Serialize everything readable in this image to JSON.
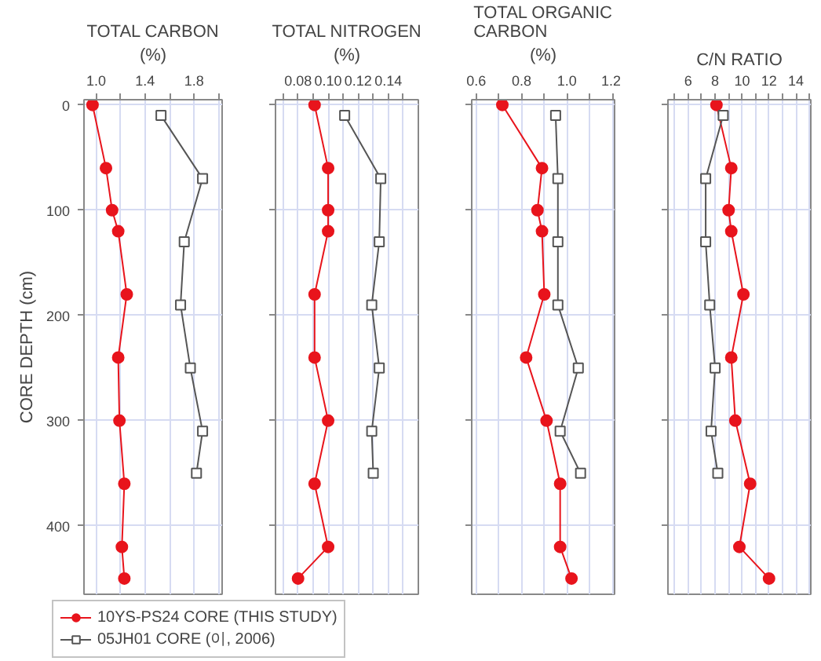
{
  "chart_data": [
    {
      "type": "line",
      "title": "TOTAL CARBON",
      "xlabel": "(%)",
      "ylabel": "CORE DEPTH (cm)",
      "xlim": [
        0.9,
        2.03
      ],
      "xticks": [
        {
          "value": 1.0,
          "label": "1.0"
        },
        {
          "value": 1.2,
          "label": null
        },
        1.4,
        {
          "value": 1.6,
          "label": null
        },
        1.8,
        {
          "value": 2.0,
          "label": null
        }
      ],
      "ylim": [
        465,
        -5
      ],
      "yticks": [
        0,
        100,
        200,
        300,
        400
      ],
      "grid": true,
      "legend": "bottom",
      "series": [
        {
          "name": "10YS-PS24 CORE (THIS STUDY)",
          "color": "#e8141c",
          "marker": "circle",
          "x": [
            0.97,
            1.08,
            1.13,
            1.18,
            1.25,
            1.18,
            1.19,
            1.23,
            1.21,
            1.23
          ],
          "values": [
            0,
            60,
            100,
            120,
            180,
            240,
            300,
            360,
            420,
            450
          ]
        },
        {
          "name": "05JH01 CORE (이, 2006)",
          "color": "#555555",
          "marker": "square",
          "x": [
            1.53,
            1.87,
            1.72,
            1.69,
            1.77,
            1.87,
            1.82
          ],
          "values": [
            10,
            70,
            130,
            190,
            250,
            310,
            350
          ]
        }
      ]
    },
    {
      "type": "line",
      "title": "TOTAL NITROGEN",
      "xlabel": "(%)",
      "xlim": [
        0.065,
        0.16
      ],
      "xticks": [
        {
          "value": 0.07,
          "label": null
        },
        0.08,
        {
          "value": 0.09,
          "label": null
        },
        {
          "value": 0.1,
          "label": "0.10"
        },
        {
          "value": 0.11,
          "label": null
        },
        0.12,
        {
          "value": 0.13,
          "label": null
        },
        0.14,
        {
          "value": 0.15,
          "label": null
        }
      ],
      "ylim": [
        465,
        -5
      ],
      "yticks": [
        0,
        100,
        200,
        300,
        400
      ],
      "tick_labels": "x",
      "grid": true,
      "series": [
        {
          "color": "#e8141c",
          "marker": "circle",
          "x": [
            0.091,
            0.1,
            0.1,
            0.1,
            0.091,
            0.091,
            0.1,
            0.091,
            0.1,
            0.08
          ],
          "values": [
            0,
            60,
            100,
            120,
            180,
            240,
            300,
            360,
            420,
            450
          ]
        },
        {
          "color": "#555555",
          "marker": "square",
          "x": [
            0.111,
            0.135,
            0.134,
            0.129,
            0.134,
            0.129,
            0.13
          ],
          "values": [
            10,
            70,
            130,
            190,
            250,
            310,
            350
          ]
        }
      ]
    },
    {
      "type": "line",
      "title": "TOTAL ORGANIC CARBON",
      "xlabel": "(%)",
      "xlim": [
        0.58,
        1.21
      ],
      "xticks": [
        0.6,
        {
          "value": 0.7,
          "label": null
        },
        0.8,
        {
          "value": 0.9,
          "label": null
        },
        {
          "value": 1.0,
          "label": "1.0"
        },
        {
          "value": 1.1,
          "label": null
        },
        1.2
      ],
      "ylim": [
        465,
        -5
      ],
      "yticks": [
        0,
        100,
        200,
        300,
        400
      ],
      "tick_labels": "x",
      "grid": true,
      "series": [
        {
          "color": "#e8141c",
          "marker": "circle",
          "x": [
            0.715,
            0.89,
            0.87,
            0.89,
            0.9,
            0.82,
            0.91,
            0.97,
            0.97,
            1.02
          ],
          "values": [
            0,
            60,
            100,
            120,
            180,
            240,
            300,
            360,
            420,
            450
          ]
        },
        {
          "color": "#555555",
          "marker": "square",
          "x": [
            0.95,
            0.96,
            0.96,
            0.96,
            1.05,
            0.97,
            1.06
          ],
          "values": [
            10,
            70,
            130,
            190,
            250,
            310,
            350
          ]
        }
      ]
    },
    {
      "type": "line",
      "title": "C/N RATIO",
      "xlim": [
        4.5,
        15.1
      ],
      "xticks": [
        {
          "value": 5,
          "label": null
        },
        6,
        {
          "value": 7,
          "label": null
        },
        8,
        {
          "value": 9,
          "label": null
        },
        10,
        {
          "value": 11,
          "label": null
        },
        12,
        {
          "value": 13,
          "label": null
        },
        14,
        {
          "value": 15,
          "label": null
        }
      ],
      "ylim": [
        465,
        -5
      ],
      "yticks": [
        0,
        100,
        200,
        300,
        400
      ],
      "tick_labels": "x",
      "grid": true,
      "series": [
        {
          "color": "#e8141c",
          "marker": "circle",
          "x": [
            8.1,
            9.2,
            9.0,
            9.2,
            10.1,
            9.2,
            9.5,
            10.6,
            9.8,
            12.0
          ],
          "values": [
            0,
            60,
            100,
            120,
            180,
            240,
            300,
            360,
            420,
            450
          ]
        },
        {
          "color": "#555555",
          "marker": "square",
          "x": [
            8.6,
            7.3,
            7.3,
            7.6,
            8.0,
            7.7,
            8.2
          ],
          "values": [
            10,
            70,
            130,
            190,
            250,
            310,
            350
          ]
        }
      ]
    }
  ]
}
